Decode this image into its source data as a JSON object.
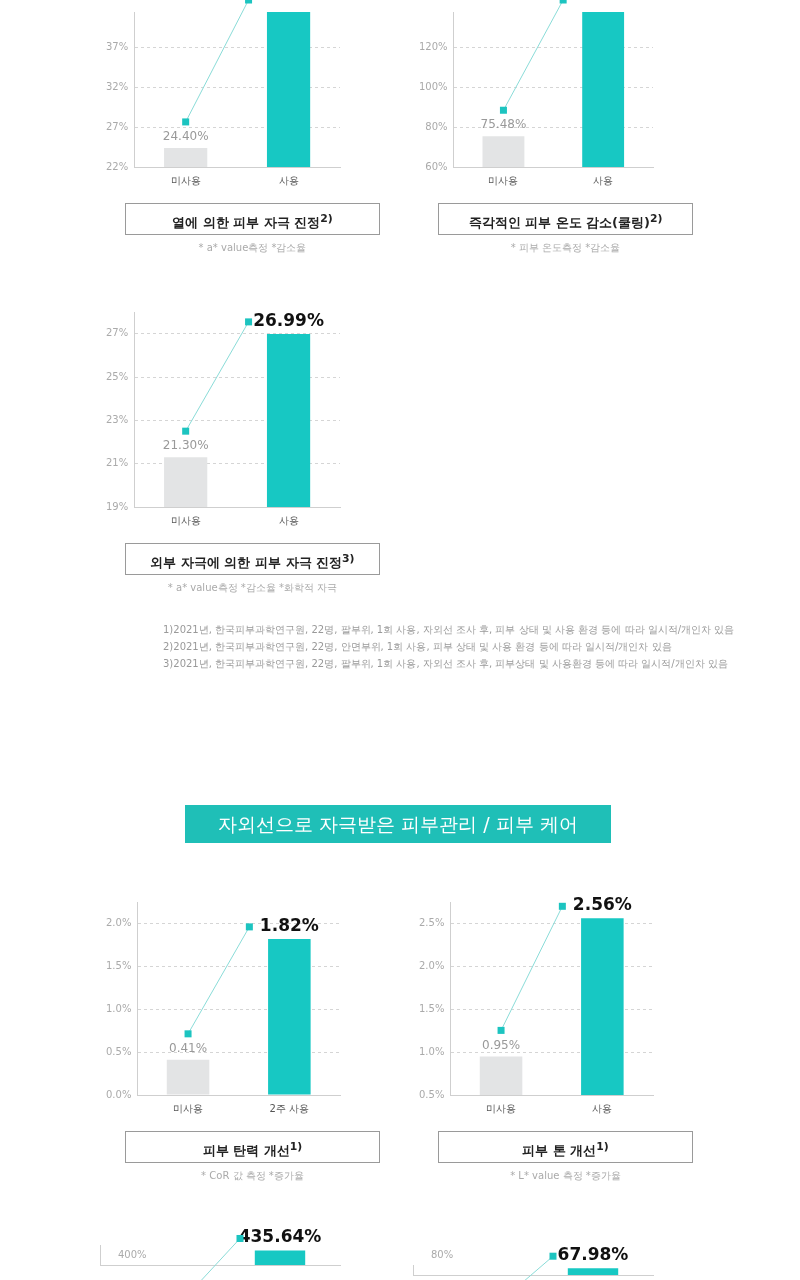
{
  "chart_data": [
    {
      "type": "bar",
      "title": "열에 의한 피부 자극 진정$^{2)}$",
      "categories": [
        "미사용",
        "사용"
      ],
      "values": [
        24.4,
        41.5
      ],
      "colors": [
        "#e3e4e5",
        "#17c8c3"
      ],
      "value_labels": [
        "24.40%",
        null
      ],
      "ylim": [
        22,
        41.5
      ],
      "yticks": [
        {
          "value": 22,
          "label": "22%"
        },
        {
          "value": 27,
          "label": "27%"
        },
        {
          "value": 32,
          "label": "32%"
        },
        {
          "value": 37,
          "label": "37%"
        }
      ],
      "grid": "y",
      "annotations": [
        "* a* value측정 *감소율"
      ]
    },
    {
      "type": "bar",
      "title": "즉각적인 피부 온도 감소(쿨링)$^{2)}$",
      "categories": [
        "미사용",
        "사용"
      ],
      "values": [
        75.48,
        138
      ],
      "colors": [
        "#e3e4e5",
        "#17c8c3"
      ],
      "value_labels": [
        "75.48%",
        null
      ],
      "ylim": [
        60,
        138
      ],
      "yticks": [
        {
          "value": 60,
          "label": "60%"
        },
        {
          "value": 80,
          "label": "80%"
        },
        {
          "value": 100,
          "label": "100%"
        },
        {
          "value": 120,
          "label": "120%"
        }
      ],
      "grid": "y",
      "annotations": [
        "* 피부 온도측정 *감소율"
      ]
    },
    {
      "type": "bar",
      "title": "외부 자극에 의한 피부 자극 진정$^{3)}$",
      "categories": [
        "미사용",
        "사용"
      ],
      "values": [
        21.3,
        26.99
      ],
      "colors": [
        "#e3e4e5",
        "#17c8c3"
      ],
      "value_labels": [
        "21.30%",
        "26.99%"
      ],
      "ylim": [
        19,
        28
      ],
      "yticks": [
        {
          "value": 19,
          "label": "19%"
        },
        {
          "value": 21,
          "label": "21%"
        },
        {
          "value": 23,
          "label": "23%"
        },
        {
          "value": 25,
          "label": "25%"
        },
        {
          "value": 27,
          "label": "27%"
        }
      ],
      "grid": "y",
      "annotations": [
        "* a* value측정 *감소율 *화학적 자극",
        "1)2021년, 한국피부과학연구원, 22명, 팔부위, 1회 사용, 자외선 조사 후, 피부 상태 및 사용 환경 등에 따라 일시적/개인차 있음",
        "2)2021년, 한국피부과학연구원, 22명, 안면부위, 1회 사용, 피부 상태 및 사용 환경 등에 따라 일시적/개인차 있음",
        "3)2021년, 한국피부과학연구원, 22명, 팔부위, 1회 사용, 자외선 조사 후,  피부상태 및 사용환경 등에 따라 일시적/개인차 있음"
      ]
    },
    {
      "type": "other",
      "title": "자외선으로 자극받은 피부관리 / 피부 케어"
    },
    {
      "type": "bar",
      "title": "피부 탄력 개선$^{1)}$",
      "categories": [
        "미사용",
        "2주 사용"
      ],
      "values": [
        0.41,
        1.82
      ],
      "colors": [
        "#e3e4e5",
        "#17c8c3"
      ],
      "value_labels": [
        "0.41%",
        "1.82%"
      ],
      "ylim": [
        0,
        2.25
      ],
      "yticks": [
        {
          "value": 0,
          "label": "0.0%"
        },
        {
          "value": 0.5,
          "label": "0.5%"
        },
        {
          "value": 1,
          "label": "1.0%"
        },
        {
          "value": 1.5,
          "label": "1.5%"
        },
        {
          "value": 2,
          "label": "2.0%"
        }
      ],
      "grid": "y",
      "annotations": [
        "* CoR 값 측정 *증가율"
      ]
    },
    {
      "type": "bar",
      "title": "피부 톤 개선$^{1)}$",
      "categories": [
        "미사용",
        "사용"
      ],
      "values": [
        0.95,
        2.56
      ],
      "colors": [
        "#e3e4e5",
        "#17c8c3"
      ],
      "value_labels": [
        "0.95%",
        "2.56%"
      ],
      "ylim": [
        0.5,
        2.75
      ],
      "yticks": [
        {
          "value": 0.5,
          "label": "0.5%"
        },
        {
          "value": 1,
          "label": "1.0%"
        },
        {
          "value": 1.5,
          "label": "1.5%"
        },
        {
          "value": 2,
          "label": "2.0%"
        },
        {
          "value": 2.5,
          "label": "2.5%"
        }
      ],
      "grid": "y",
      "annotations": [
        "* L* value 측정 *증가율"
      ]
    },
    {
      "type": "bar",
      "categories": [
        null,
        null
      ],
      "values": [
        null,
        435.64
      ],
      "colors": [
        "#e3e4e5",
        "#17c8c3"
      ],
      "value_labels": [
        null,
        "435.64%"
      ],
      "annotations": [
        "400%"
      ]
    },
    {
      "type": "bar",
      "categories": [
        null,
        null
      ],
      "values": [
        null,
        67.98
      ],
      "colors": [
        "#e3e4e5",
        "#17c8c3"
      ],
      "value_labels": [
        null,
        "67.98%"
      ],
      "annotations": [
        "80%"
      ]
    }
  ]
}
